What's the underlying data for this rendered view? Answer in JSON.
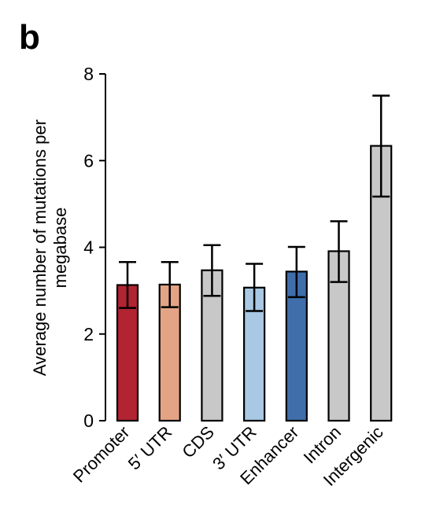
{
  "panel_letter": "b",
  "chart_data": {
    "type": "bar",
    "title": "",
    "xlabel": "",
    "ylabel": "Average number of mutations per megabase",
    "ylabel_lines": [
      "Average number of mutations per",
      "megabase"
    ],
    "ylim": [
      0,
      8
    ],
    "yticks": [
      0,
      2,
      4,
      6,
      8
    ],
    "grid": false,
    "legend": "none",
    "categories": [
      "Promoter",
      "5′ UTR",
      "CDS",
      "3′ UTR",
      "Enhancer",
      "Intron",
      "Intergenic"
    ],
    "values": [
      3.13,
      3.14,
      3.47,
      3.07,
      3.44,
      3.91,
      6.34
    ],
    "error_low": [
      2.6,
      2.62,
      2.88,
      2.53,
      2.85,
      3.2,
      5.17
    ],
    "error_high": [
      3.66,
      3.66,
      4.05,
      3.62,
      4.01,
      4.6,
      7.5
    ],
    "colors": [
      "#b22432",
      "#e3a485",
      "#c8c8c8",
      "#a8c8e3",
      "#3f6eaa",
      "#c8c8c8",
      "#c8c8c8"
    ]
  }
}
